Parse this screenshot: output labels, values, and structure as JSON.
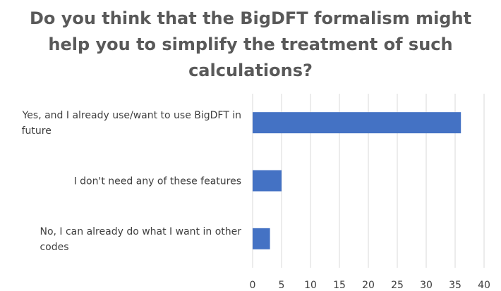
{
  "chart_data": {
    "type": "bar",
    "orientation": "horizontal",
    "title": "Do you think that the BigDFT formalism might help you to simplify the treatment of such calculations?",
    "categories": [
      [
        "Yes, and I already use/want to use BigDFT in",
        "future"
      ],
      [
        "I don't need any of these features"
      ],
      [
        "No, I can already do what I want in other",
        "codes"
      ]
    ],
    "values": [
      36,
      5,
      3
    ],
    "xlim": [
      0,
      40
    ],
    "xticks": [
      0,
      5,
      10,
      15,
      20,
      25,
      30,
      35,
      40
    ],
    "grid": true,
    "legend": "none",
    "bar_color": "#4472c4",
    "grid_color": "#d9d9d9"
  }
}
